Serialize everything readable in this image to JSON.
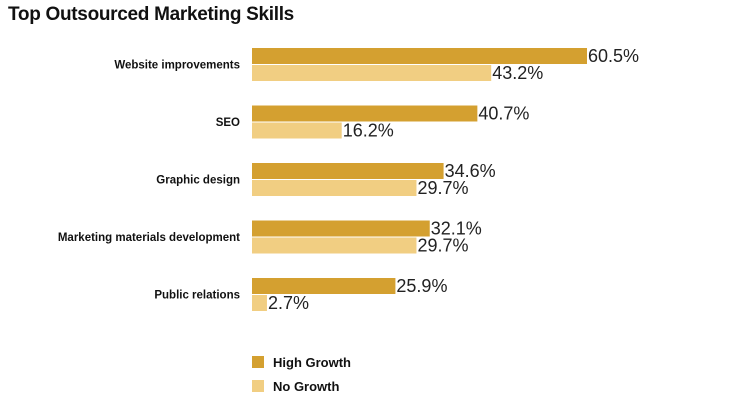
{
  "title": "Top Outsourced Marketing Skills",
  "colors": {
    "high_growth": "#D4A030",
    "no_growth": "#F1CE82"
  },
  "chart_data": {
    "type": "bar",
    "orientation": "horizontal",
    "title": "Top Outsourced Marketing Skills",
    "categories": [
      "Website improvements",
      "SEO",
      "Graphic design",
      "Marketing materials development",
      "Public relations"
    ],
    "series": [
      {
        "name": "High Growth",
        "values": [
          60.5,
          40.7,
          34.6,
          32.1,
          25.9
        ],
        "labels": [
          "60.5%",
          "40.7%",
          "34.6%",
          "32.1%",
          "25.9%"
        ]
      },
      {
        "name": "No Growth",
        "values": [
          43.2,
          16.2,
          29.7,
          29.7,
          2.7
        ],
        "labels": [
          "43.2%",
          "16.2%",
          "29.7%",
          "29.7%",
          "2.7%"
        ]
      }
    ],
    "xlim": [
      0,
      60.5
    ],
    "unit": "%",
    "grid": false,
    "legend_position": "bottom-left"
  }
}
